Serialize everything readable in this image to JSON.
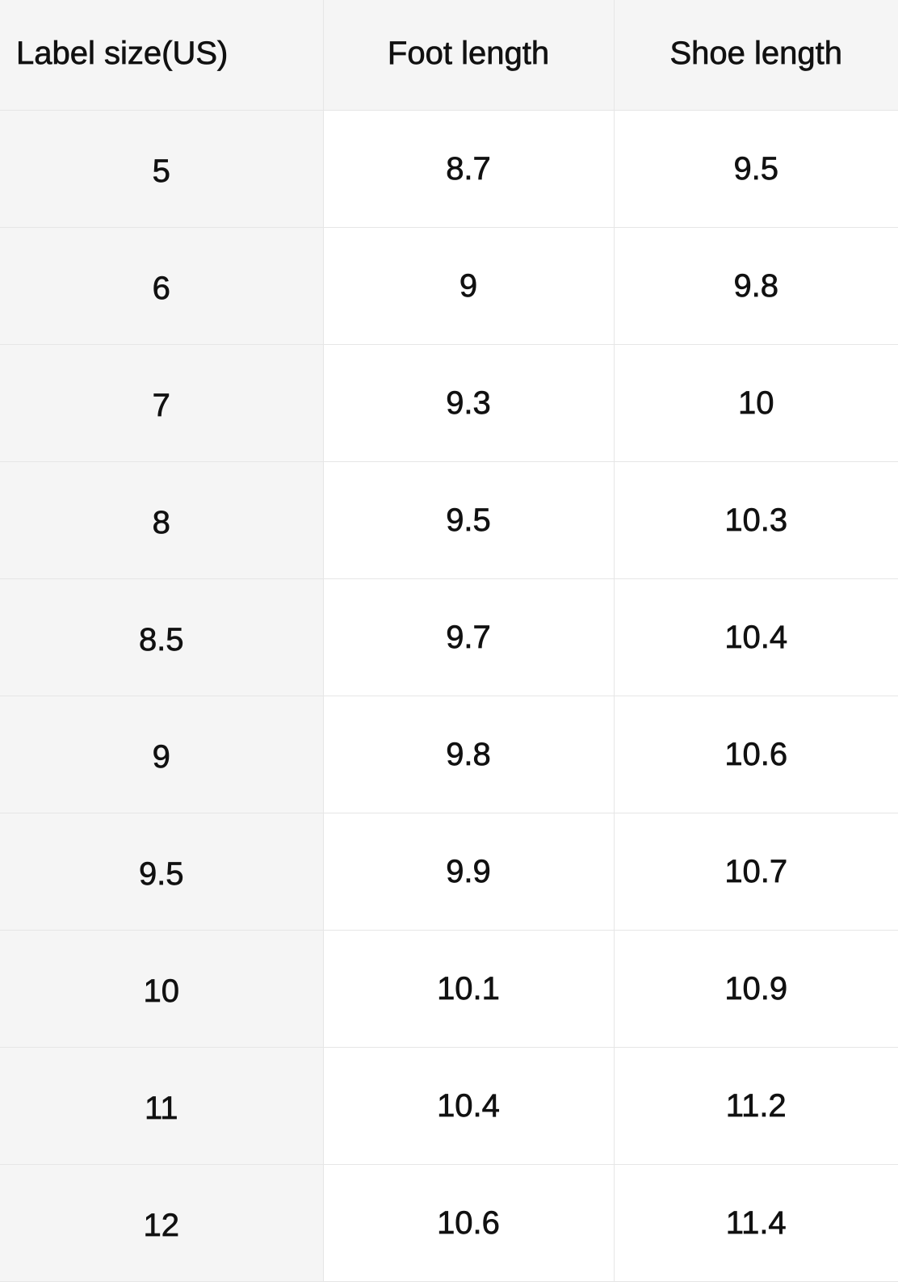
{
  "table": {
    "headers": [
      "Label size(US)",
      "Foot length",
      "Shoe length"
    ],
    "rows": [
      [
        "5",
        "8.7",
        "9.5"
      ],
      [
        "6",
        "9",
        "9.8"
      ],
      [
        "7",
        "9.3",
        "10"
      ],
      [
        "8",
        "9.5",
        "10.3"
      ],
      [
        "8.5",
        "9.7",
        "10.4"
      ],
      [
        "9",
        "9.8",
        "10.6"
      ],
      [
        "9.5",
        "9.9",
        "10.7"
      ],
      [
        "10",
        "10.1",
        "10.9"
      ],
      [
        "11",
        "10.4",
        "11.2"
      ],
      [
        "12",
        "10.6",
        "11.4"
      ]
    ]
  },
  "colors": {
    "header_bg": "#f5f5f5",
    "first_column_bg": "#f5f5f5",
    "border": "#e6e6e6",
    "text": "#111111"
  }
}
